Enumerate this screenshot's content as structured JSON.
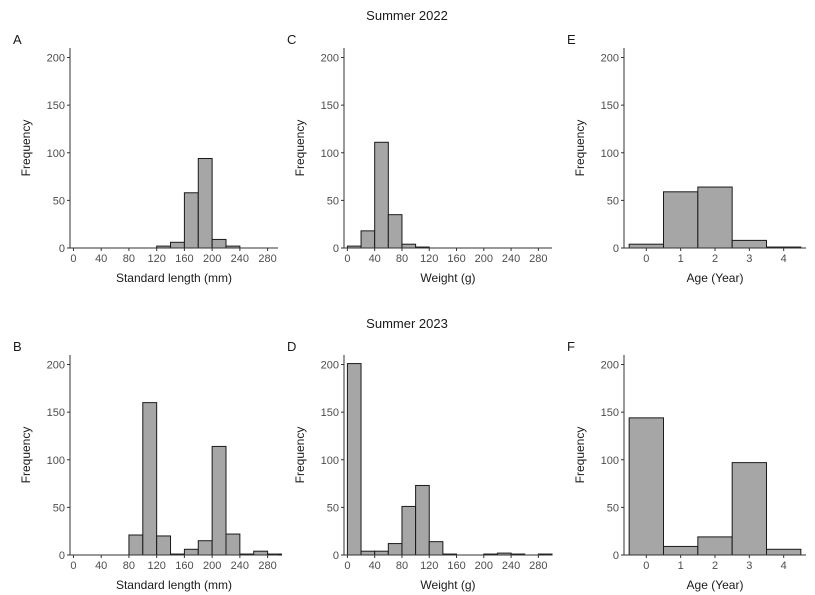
{
  "row_titles": [
    "Summer 2022",
    "Summer 2023"
  ],
  "colors": {
    "bar_fill": "#a6a6a6",
    "bar_stroke": "#1a1a1a",
    "axis": "#333333"
  },
  "chart_data": [
    {
      "panel": "A",
      "type": "bar",
      "row": 0,
      "xlabel": "Standard length (mm)",
      "ylabel": "Frequency",
      "xlim": [
        -5,
        295
      ],
      "ylim": [
        0,
        210
      ],
      "xticks": [
        0,
        40,
        80,
        120,
        160,
        200,
        240,
        280
      ],
      "yticks": [
        0,
        50,
        100,
        150,
        200
      ],
      "bin_width": 20,
      "bins": [
        0,
        20,
        40,
        60,
        80,
        100,
        120,
        140,
        160,
        180,
        200,
        220,
        240,
        260,
        280
      ],
      "values": [
        0,
        0,
        0,
        0,
        0,
        0,
        2,
        6,
        58,
        94,
        9,
        2,
        0,
        0,
        0
      ]
    },
    {
      "panel": "C",
      "type": "bar",
      "row": 0,
      "xlabel": "Weight (g)",
      "ylabel": "Frequency",
      "xlim": [
        -5,
        300
      ],
      "ylim": [
        0,
        210
      ],
      "xticks": [
        0,
        40,
        80,
        120,
        160,
        200,
        240,
        280
      ],
      "yticks": [
        0,
        50,
        100,
        150,
        200
      ],
      "bin_width": 20,
      "bins": [
        0,
        20,
        40,
        60,
        80,
        100,
        120,
        140,
        160,
        180,
        200,
        220,
        240,
        260,
        280
      ],
      "values": [
        2,
        18,
        111,
        35,
        4,
        1,
        0,
        0,
        0,
        0,
        0,
        0,
        0,
        0,
        0
      ]
    },
    {
      "panel": "E",
      "type": "bar",
      "row": 0,
      "xlabel": "Age (Year)",
      "ylabel": "Frequency",
      "xlim": [
        -0.65,
        4.65
      ],
      "ylim": [
        0,
        210
      ],
      "xticks": [
        0,
        1,
        2,
        3,
        4
      ],
      "yticks": [
        0,
        50,
        100,
        150,
        200
      ],
      "bin_width": 1,
      "bins": [
        0,
        1,
        2,
        3,
        4
      ],
      "values": [
        4,
        59,
        64,
        8,
        1
      ]
    },
    {
      "panel": "B",
      "type": "bar",
      "row": 1,
      "xlabel": "Standard length (mm)",
      "ylabel": "Frequency",
      "xlim": [
        -5,
        295
      ],
      "ylim": [
        0,
        210
      ],
      "xticks": [
        0,
        40,
        80,
        120,
        160,
        200,
        240,
        280
      ],
      "yticks": [
        0,
        50,
        100,
        150,
        200
      ],
      "bin_width": 20,
      "bins": [
        0,
        20,
        40,
        60,
        80,
        100,
        120,
        140,
        160,
        180,
        200,
        220,
        240,
        260,
        280
      ],
      "values": [
        0,
        0,
        0,
        0,
        21,
        160,
        20,
        1,
        6,
        15,
        114,
        22,
        1,
        4,
        1
      ]
    },
    {
      "panel": "D",
      "type": "bar",
      "row": 1,
      "xlabel": "Weight (g)",
      "ylabel": "Frequency",
      "xlim": [
        -5,
        300
      ],
      "ylim": [
        0,
        210
      ],
      "xticks": [
        0,
        40,
        80,
        120,
        160,
        200,
        240,
        280
      ],
      "yticks": [
        0,
        50,
        100,
        150,
        200
      ],
      "bin_width": 20,
      "bins": [
        0,
        20,
        40,
        60,
        80,
        100,
        120,
        140,
        160,
        180,
        200,
        220,
        240,
        260,
        280
      ],
      "values": [
        201,
        4,
        4,
        12,
        51,
        73,
        14,
        1,
        0,
        0,
        1,
        2,
        1,
        0,
        1
      ]
    },
    {
      "panel": "F",
      "type": "bar",
      "row": 1,
      "xlabel": "Age (Year)",
      "ylabel": "Frequency",
      "xlim": [
        -0.65,
        4.65
      ],
      "ylim": [
        0,
        210
      ],
      "xticks": [
        0,
        1,
        2,
        3,
        4
      ],
      "yticks": [
        0,
        50,
        100,
        150,
        200
      ],
      "bin_width": 1,
      "bins": [
        0,
        1,
        2,
        3,
        4
      ],
      "values": [
        144,
        9,
        19,
        97,
        6
      ]
    }
  ]
}
